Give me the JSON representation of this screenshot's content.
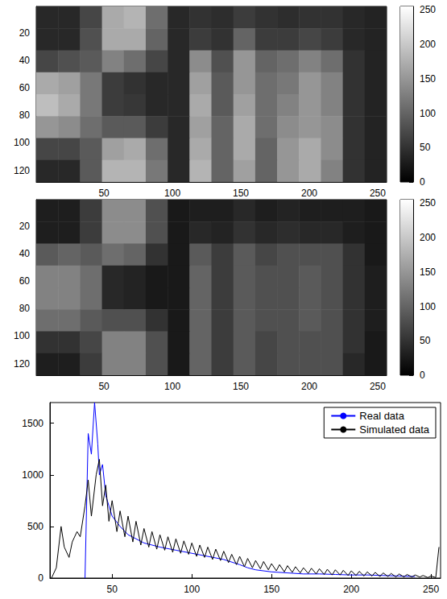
{
  "chart_data": [
    {
      "type": "heatmap",
      "xlim": [
        0.5,
        256.5
      ],
      "xticks": [
        50,
        100,
        150,
        200,
        250
      ],
      "ylim": [
        0.5,
        128.5
      ],
      "yticks": [
        20,
        40,
        60,
        80,
        100,
        120
      ],
      "cell_x": [
        8.5,
        24.5,
        40.5,
        56.5,
        72.5,
        88.5,
        104.5,
        120.5,
        136.5,
        152.5,
        168.5,
        184.5,
        200.5,
        216.5,
        232.5,
        248.5
      ],
      "cell_y": [
        8.5,
        24.5,
        40.5,
        56.5,
        72.5,
        88.5,
        104.5,
        120.5
      ],
      "cells": [
        [
          40,
          40,
          70,
          170,
          180,
          110,
          40,
          50,
          45,
          60,
          50,
          45,
          50,
          50,
          40,
          35
        ],
        [
          40,
          40,
          80,
          170,
          170,
          100,
          40,
          60,
          50,
          100,
          60,
          60,
          70,
          60,
          40,
          35
        ],
        [
          70,
          80,
          90,
          130,
          110,
          70,
          40,
          140,
          80,
          150,
          100,
          110,
          130,
          110,
          50,
          35
        ],
        [
          170,
          160,
          120,
          60,
          50,
          40,
          40,
          160,
          90,
          150,
          110,
          120,
          150,
          130,
          50,
          35
        ],
        [
          190,
          170,
          120,
          60,
          55,
          40,
          40,
          170,
          90,
          160,
          110,
          130,
          150,
          130,
          50,
          35
        ],
        [
          150,
          140,
          110,
          90,
          90,
          60,
          40,
          160,
          100,
          170,
          110,
          140,
          150,
          140,
          50,
          35
        ],
        [
          70,
          70,
          90,
          160,
          170,
          110,
          40,
          170,
          100,
          170,
          100,
          150,
          170,
          140,
          50,
          35
        ],
        [
          40,
          40,
          90,
          180,
          180,
          120,
          40,
          180,
          100,
          160,
          100,
          150,
          170,
          130,
          50,
          35
        ]
      ],
      "clim": [
        0,
        255
      ],
      "cticks": [
        0,
        50,
        100,
        150,
        200,
        250
      ]
    },
    {
      "type": "heatmap",
      "xlim": [
        0.5,
        256.5
      ],
      "xticks": [
        50,
        100,
        150,
        200,
        250
      ],
      "ylim": [
        0.5,
        128.5
      ],
      "yticks": [
        20,
        40,
        60,
        80,
        100,
        120
      ],
      "cell_x": [
        8.5,
        24.5,
        40.5,
        56.5,
        72.5,
        88.5,
        104.5,
        120.5,
        136.5,
        152.5,
        168.5,
        184.5,
        200.5,
        216.5,
        232.5,
        248.5
      ],
      "cell_y": [
        8.5,
        24.5,
        40.5,
        56.5,
        72.5,
        88.5,
        104.5,
        120.5
      ],
      "cells": [
        [
          30,
          30,
          60,
          140,
          140,
          80,
          25,
          30,
          30,
          40,
          30,
          35,
          30,
          30,
          30,
          25
        ],
        [
          30,
          30,
          60,
          140,
          140,
          80,
          25,
          40,
          35,
          50,
          40,
          45,
          40,
          40,
          30,
          25
        ],
        [
          90,
          100,
          90,
          110,
          100,
          50,
          25,
          90,
          60,
          90,
          70,
          80,
          80,
          80,
          50,
          25
        ],
        [
          130,
          130,
          110,
          40,
          35,
          25,
          25,
          100,
          60,
          90,
          80,
          80,
          90,
          80,
          50,
          30
        ],
        [
          130,
          130,
          110,
          40,
          35,
          25,
          25,
          100,
          60,
          90,
          80,
          80,
          90,
          80,
          50,
          30
        ],
        [
          110,
          110,
          90,
          80,
          80,
          50,
          25,
          100,
          60,
          90,
          80,
          80,
          90,
          80,
          50,
          30
        ],
        [
          50,
          50,
          70,
          130,
          130,
          80,
          25,
          100,
          60,
          90,
          70,
          80,
          80,
          80,
          50,
          25
        ],
        [
          30,
          30,
          60,
          130,
          130,
          80,
          25,
          100,
          60,
          90,
          70,
          80,
          80,
          80,
          40,
          25
        ]
      ],
      "clim": [
        0,
        255
      ],
      "cticks": [
        0,
        50,
        100,
        150,
        200,
        250
      ]
    },
    {
      "type": "line",
      "xlim": [
        11,
        256
      ],
      "xticks": [
        50,
        100,
        150,
        200,
        250
      ],
      "ylim": [
        0,
        1700
      ],
      "yticks": [
        0,
        500,
        1000,
        1500
      ],
      "grid": false,
      "legend": "upper right",
      "series": [
        {
          "name": "Real data",
          "color": "#0000ff",
          "x": [
            33,
            35,
            37,
            39,
            41,
            42,
            44,
            46,
            48,
            50,
            55,
            60,
            65,
            70,
            75,
            80,
            90,
            100,
            110,
            120,
            130,
            135,
            140,
            150,
            160,
            170,
            180,
            190,
            200,
            210,
            220,
            230,
            240
          ],
          "values": [
            0,
            1400,
            1200,
            1700,
            1300,
            1000,
            1100,
            800,
            700,
            600,
            500,
            420,
            380,
            340,
            320,
            300,
            270,
            240,
            210,
            180,
            130,
            100,
            80,
            60,
            50,
            40,
            40,
            35,
            30,
            30,
            25,
            20,
            15
          ]
        },
        {
          "name": "Simulated data",
          "color": "#000000",
          "x": [
            12,
            15,
            18,
            20,
            23,
            25,
            28,
            30,
            33,
            35,
            37,
            40,
            42,
            44,
            46,
            48,
            50,
            53,
            55,
            58,
            60,
            63,
            65,
            68,
            70,
            73,
            75,
            78,
            80,
            83,
            85,
            88,
            90,
            93,
            95,
            98,
            100,
            103,
            105,
            108,
            110,
            113,
            115,
            118,
            120,
            123,
            125,
            128,
            130,
            133,
            135,
            138,
            140,
            143,
            145,
            148,
            150,
            153,
            155,
            158,
            160,
            163,
            165,
            168,
            170,
            173,
            175,
            178,
            180,
            183,
            185,
            188,
            190,
            193,
            195,
            198,
            200,
            203,
            205,
            208,
            210,
            213,
            215,
            218,
            220,
            223,
            225,
            228,
            230,
            233,
            235,
            238,
            240,
            243,
            245,
            248,
            250,
            253,
            255
          ],
          "values": [
            0,
            100,
            500,
            300,
            200,
            350,
            450,
            400,
            700,
            950,
            600,
            1000,
            1150,
            700,
            900,
            550,
            750,
            450,
            650,
            400,
            600,
            350,
            550,
            320,
            480,
            300,
            450,
            280,
            420,
            270,
            400,
            250,
            380,
            240,
            360,
            230,
            340,
            210,
            320,
            200,
            300,
            180,
            280,
            170,
            260,
            150,
            230,
            130,
            210,
            110,
            190,
            100,
            170,
            90,
            160,
            80,
            140,
            70,
            130,
            60,
            120,
            55,
            110,
            50,
            100,
            45,
            95,
            40,
            90,
            35,
            85,
            30,
            80,
            30,
            75,
            25,
            70,
            25,
            65,
            20,
            60,
            20,
            55,
            15,
            50,
            15,
            45,
            10,
            40,
            10,
            35,
            10,
            30,
            10,
            25,
            5,
            20,
            5,
            300
          ]
        }
      ]
    }
  ]
}
